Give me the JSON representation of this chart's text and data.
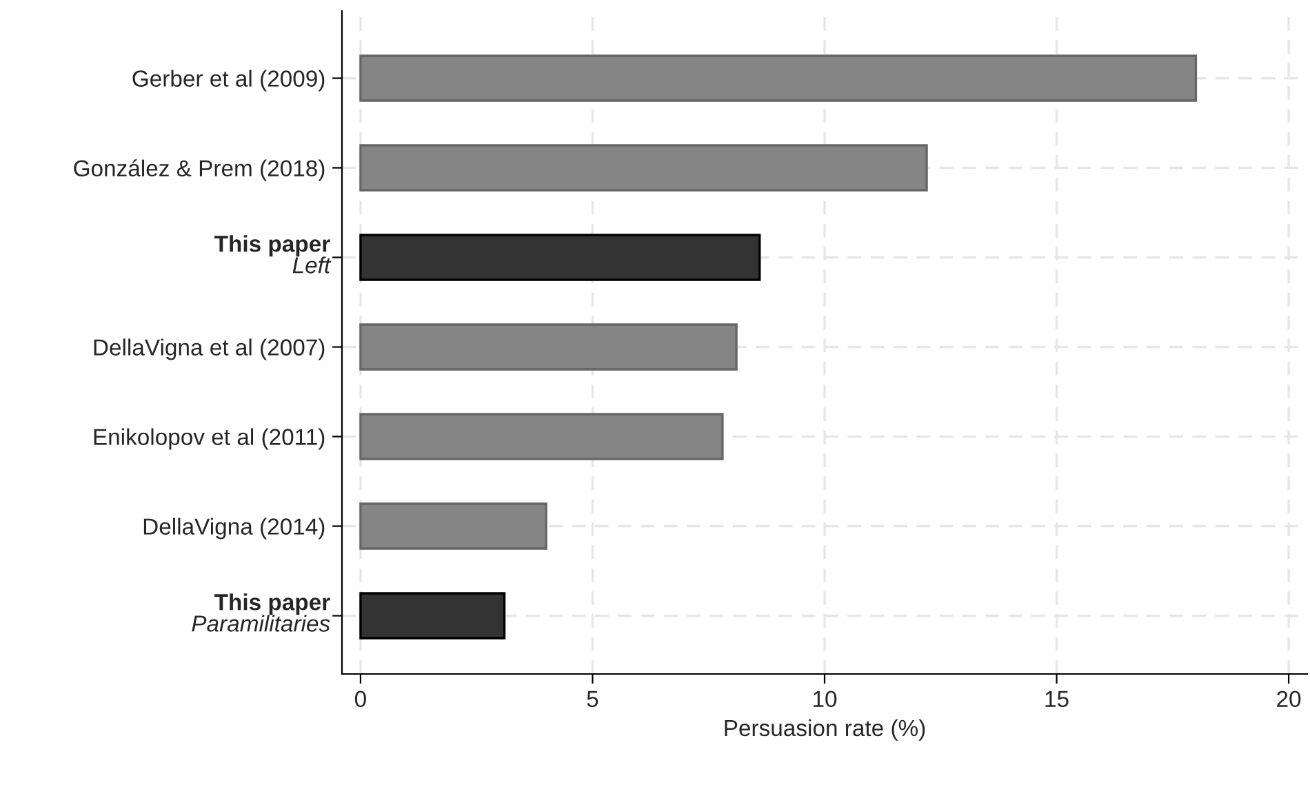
{
  "chart_data": {
    "type": "bar",
    "orientation": "horizontal",
    "xlabel": "Persuasion rate (%)",
    "categories": [
      "Gerber et al (2009)",
      "González & Prem (2018)",
      "This paper\nLeft",
      "DellaVigna et al (2007)",
      "Enikolopov et al (2011)",
      "DellaVigna (2014)",
      "This paper\nParamilitaries"
    ],
    "values": [
      18.0,
      12.2,
      8.6,
      8.1,
      7.8,
      4.0,
      3.1
    ],
    "colors": [
      "#858585",
      "#858585",
      "#333333",
      "#858585",
      "#858585",
      "#858585",
      "#333333"
    ],
    "xlim": [
      -0.4,
      20.4
    ],
    "xticks": [
      0,
      5,
      10,
      15,
      20
    ],
    "grid": true
  }
}
